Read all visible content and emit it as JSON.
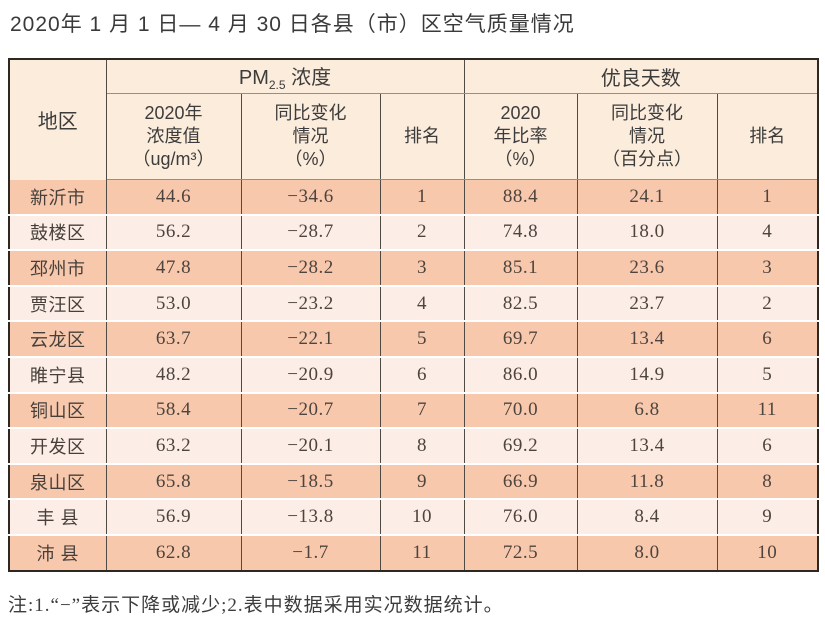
{
  "page": {
    "title": "2020年 1 月 1 日— 4 月 30 日各县（市）区空气质量情况",
    "note": "注:1.“−”表示下降或减少;2.表中数据采用实况数据统计。"
  },
  "colors": {
    "row_dark": "#f8c8ad",
    "row_light": "#fceee7",
    "header_bg": "#fcecdc",
    "outer_border": "#2e2823",
    "inner_line": "#4f4a44",
    "gray_line": "#978f86"
  },
  "table": {
    "header": {
      "region": "地区",
      "pm25_prefix": "PM",
      "pm25_sub": "2.5",
      "pm25_suffix": " 浓度",
      "good_days": "优良天数"
    },
    "sub_headers": {
      "pm_value": [
        "2020年",
        "浓度值",
        "（ug/m³）"
      ],
      "pm_change": [
        "同比变化",
        "情况",
        "（%）"
      ],
      "pm_rank": "排名",
      "gd_ratio": [
        "2020",
        "年比率",
        "（%）"
      ],
      "gd_change": [
        "同比变化",
        "情况",
        "（百分点）"
      ],
      "gd_rank": "排名"
    },
    "rows": [
      [
        "新沂市",
        "44.6",
        "−34.6",
        "1",
        "88.4",
        "24.1",
        "1"
      ],
      [
        "鼓楼区",
        "56.2",
        "−28.7",
        "2",
        "74.8",
        "18.0",
        "4"
      ],
      [
        "邳州市",
        "47.8",
        "−28.2",
        "3",
        "85.1",
        "23.6",
        "3"
      ],
      [
        "贾汪区",
        "53.0",
        "−23.2",
        "4",
        "82.5",
        "23.7",
        "2"
      ],
      [
        "云龙区",
        "63.7",
        "−22.1",
        "5",
        "69.7",
        "13.4",
        "6"
      ],
      [
        "睢宁县",
        "48.2",
        "−20.9",
        "6",
        "86.0",
        "14.9",
        "5"
      ],
      [
        "铜山区",
        "58.4",
        "−20.7",
        "7",
        "70.0",
        "6.8",
        "11"
      ],
      [
        "开发区",
        "63.2",
        "−20.1",
        "8",
        "69.2",
        "13.4",
        "6"
      ],
      [
        "泉山区",
        "65.8",
        "−18.5",
        "9",
        "66.9",
        "11.8",
        "8"
      ],
      [
        "丰 县",
        "56.9",
        "−13.8",
        "10",
        "76.0",
        "8.4",
        "9"
      ],
      [
        "沛 县",
        "62.8",
        "−1.7",
        "11",
        "72.5",
        "8.0",
        "10"
      ]
    ]
  }
}
